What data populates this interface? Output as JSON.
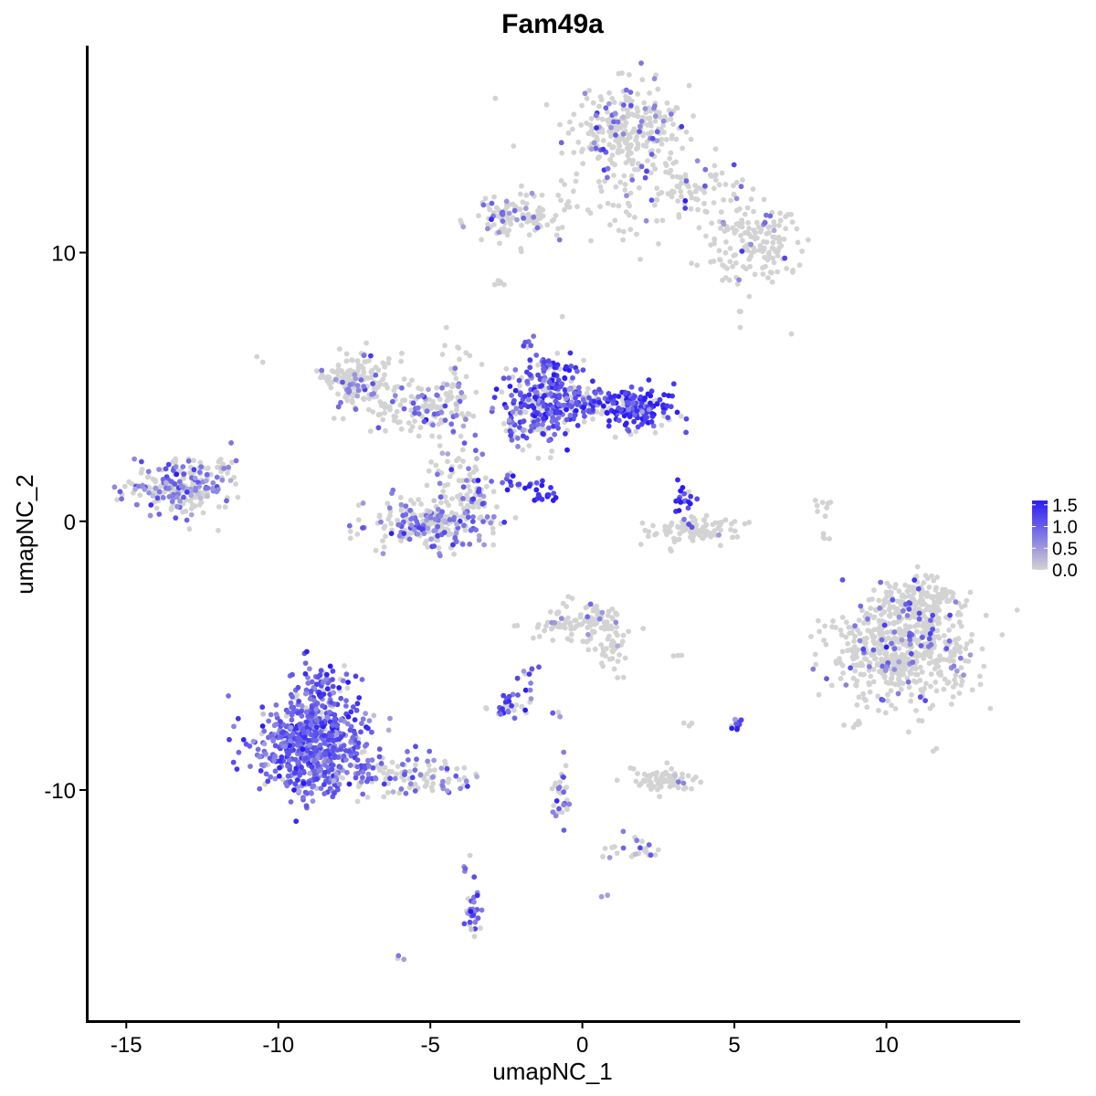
{
  "chart_data": {
    "type": "scatter",
    "title": "Fam49a",
    "xlabel": "umapNC_1",
    "ylabel": "umapNC_2",
    "xlim": [
      -16.3,
      14.4
    ],
    "ylim": [
      -18.6,
      17.7
    ],
    "x_ticks": [
      -15,
      -10,
      -5,
      0,
      5,
      10
    ],
    "x_tick_labels": [
      "-15",
      "-10",
      "-5",
      "0",
      "5",
      "10"
    ],
    "y_ticks": [
      -10,
      0,
      10
    ],
    "y_tick_labels": [
      "-10",
      "0",
      "10"
    ],
    "grid": false,
    "legend_position": "right",
    "color_scale": {
      "low": "#d3d3d3",
      "high": "#2a1bf5",
      "min": 0.0,
      "max": 1.6,
      "tick_values": [
        1.5,
        1.0,
        0.5,
        0.0
      ],
      "tick_labels": [
        "1.5",
        "1.0",
        "0.5",
        "0.0"
      ]
    },
    "clusters": [
      {
        "cx": 1.5,
        "cy": 14.5,
        "sx": 1.3,
        "sy": 1.1,
        "n": 300,
        "frac": 0.2,
        "level": 0.9
      },
      {
        "cx": 3.4,
        "cy": 12.4,
        "sx": 1.0,
        "sy": 0.6,
        "n": 70,
        "frac": 0.15,
        "level": 0.9
      },
      {
        "cx": 5.6,
        "cy": 10.3,
        "sx": 1.0,
        "sy": 1.0,
        "n": 170,
        "frac": 0.06,
        "level": 0.8
      },
      {
        "cx": 0.8,
        "cy": 11.5,
        "sx": 2.0,
        "sy": 0.8,
        "n": 50,
        "frac": 0.05,
        "level": 0.8
      },
      {
        "cx": -2.6,
        "cy": 11.3,
        "sx": 0.8,
        "sy": 0.6,
        "n": 80,
        "frac": 0.3,
        "level": 0.8
      },
      {
        "cx": -1.4,
        "cy": 11.1,
        "sx": 0.6,
        "sy": 0.25,
        "n": 25,
        "frac": 0.2,
        "level": 0.7
      },
      {
        "cx": -2.7,
        "cy": 8.8,
        "sx": 0.15,
        "sy": 0.15,
        "n": 6,
        "frac": 0.0,
        "level": 0.5
      },
      {
        "cx": 5.2,
        "cy": 7.8,
        "sx": 0.05,
        "sy": 0.05,
        "n": 2,
        "frac": 0.0,
        "level": 0.5
      },
      {
        "cx": 6.9,
        "cy": 7.0,
        "sx": 0.05,
        "sy": 0.05,
        "n": 1,
        "frac": 0.0,
        "level": 0.5
      },
      {
        "cx": -1.2,
        "cy": 4.8,
        "sx": 0.8,
        "sy": 1.1,
        "n": 260,
        "frac": 0.7,
        "level": 1.2
      },
      {
        "cx": 1.8,
        "cy": 4.2,
        "sx": 0.8,
        "sy": 0.5,
        "n": 160,
        "frac": 0.8,
        "level": 1.35
      },
      {
        "cx": 0.2,
        "cy": 4.4,
        "sx": 0.8,
        "sy": 0.4,
        "n": 80,
        "frac": 0.6,
        "level": 1.1
      },
      {
        "cx": -1.8,
        "cy": 3.6,
        "sx": 0.5,
        "sy": 0.4,
        "n": 50,
        "frac": 0.5,
        "level": 1.0
      },
      {
        "cx": -2.1,
        "cy": 1.4,
        "sx": 0.6,
        "sy": 0.3,
        "n": 20,
        "frac": 0.8,
        "level": 1.3
      },
      {
        "cx": -1.3,
        "cy": 0.9,
        "sx": 0.4,
        "sy": 0.2,
        "n": 12,
        "frac": 0.9,
        "level": 1.5
      },
      {
        "cx": -7.5,
        "cy": 5.3,
        "sx": 0.7,
        "sy": 0.7,
        "n": 160,
        "frac": 0.15,
        "level": 0.8
      },
      {
        "cx": -5.0,
        "cy": 4.2,
        "sx": 1.2,
        "sy": 0.6,
        "n": 130,
        "frac": 0.35,
        "level": 0.9
      },
      {
        "cx": -4.3,
        "cy": 5.6,
        "sx": 0.4,
        "sy": 1.2,
        "n": 30,
        "frac": 0.1,
        "level": 0.6
      },
      {
        "cx": -4.4,
        "cy": 2.2,
        "sx": 0.35,
        "sy": 0.9,
        "n": 30,
        "frac": 0.2,
        "level": 0.7
      },
      {
        "cx": -5.1,
        "cy": -0.1,
        "sx": 1.3,
        "sy": 0.55,
        "n": 230,
        "frac": 0.4,
        "level": 0.8
      },
      {
        "cx": -3.6,
        "cy": 1.0,
        "sx": 0.4,
        "sy": 0.8,
        "n": 70,
        "frac": 0.4,
        "level": 0.9
      },
      {
        "cx": -13.3,
        "cy": 1.3,
        "sx": 1.0,
        "sy": 0.6,
        "n": 220,
        "frac": 0.45,
        "level": 0.75
      },
      {
        "cx": -11.8,
        "cy": 1.9,
        "sx": 0.35,
        "sy": 0.5,
        "n": 25,
        "frac": 0.2,
        "level": 0.6
      },
      {
        "cx": 3.7,
        "cy": -0.3,
        "sx": 0.9,
        "sy": 0.3,
        "n": 100,
        "frac": 0.05,
        "level": 0.8
      },
      {
        "cx": 3.4,
        "cy": 0.8,
        "sx": 0.25,
        "sy": 0.4,
        "n": 20,
        "frac": 0.8,
        "level": 1.4
      },
      {
        "cx": 8.0,
        "cy": 0.3,
        "sx": 0.15,
        "sy": 0.5,
        "n": 12,
        "frac": 0.0,
        "level": 0.5
      },
      {
        "cx": 10.5,
        "cy": -4.8,
        "sx": 1.4,
        "sy": 1.3,
        "n": 600,
        "frac": 0.12,
        "level": 0.95
      },
      {
        "cx": 11.2,
        "cy": -3.0,
        "sx": 0.8,
        "sy": 0.6,
        "n": 120,
        "frac": 0.12,
        "level": 0.95
      },
      {
        "cx": 0.0,
        "cy": -3.8,
        "sx": 0.9,
        "sy": 0.5,
        "n": 110,
        "frac": 0.15,
        "level": 0.7
      },
      {
        "cx": 1.0,
        "cy": -4.7,
        "sx": 0.3,
        "sy": 0.5,
        "n": 30,
        "frac": 0.05,
        "level": 0.6
      },
      {
        "cx": -2.3,
        "cy": -6.9,
        "sx": 0.4,
        "sy": 0.3,
        "n": 30,
        "frac": 0.55,
        "level": 1.1
      },
      {
        "cx": -1.7,
        "cy": -5.9,
        "sx": 0.2,
        "sy": 0.5,
        "n": 10,
        "frac": 0.5,
        "level": 1.0
      },
      {
        "cx": 2.5,
        "cy": -9.6,
        "sx": 0.7,
        "sy": 0.3,
        "n": 70,
        "frac": 0.03,
        "level": 0.6
      },
      {
        "cx": 5.0,
        "cy": -7.5,
        "sx": 0.15,
        "sy": 0.2,
        "n": 12,
        "frac": 0.7,
        "level": 1.2
      },
      {
        "cx": 3.0,
        "cy": -5.0,
        "sx": 0.1,
        "sy": 0.1,
        "n": 3,
        "frac": 0.0,
        "level": 0.5
      },
      {
        "cx": 3.5,
        "cy": -7.6,
        "sx": 0.1,
        "sy": 0.1,
        "n": 3,
        "frac": 0.3,
        "level": 0.7
      },
      {
        "cx": -0.8,
        "cy": -7.2,
        "sx": 0.1,
        "sy": 0.1,
        "n": 3,
        "frac": 0.3,
        "level": 0.7
      },
      {
        "cx": -0.7,
        "cy": -10.4,
        "sx": 0.2,
        "sy": 0.9,
        "n": 30,
        "frac": 0.5,
        "level": 0.9
      },
      {
        "cx": 1.7,
        "cy": -12.2,
        "sx": 0.7,
        "sy": 0.3,
        "n": 25,
        "frac": 0.3,
        "level": 0.8
      },
      {
        "cx": -8.8,
        "cy": -8.4,
        "sx": 1.1,
        "sy": 1.1,
        "n": 650,
        "frac": 0.9,
        "level": 1.0
      },
      {
        "cx": -8.6,
        "cy": -6.2,
        "sx": 0.6,
        "sy": 0.6,
        "n": 80,
        "frac": 0.8,
        "level": 1.1
      },
      {
        "cx": -5.5,
        "cy": -9.5,
        "sx": 1.3,
        "sy": 0.5,
        "n": 110,
        "frac": 0.4,
        "level": 0.8
      },
      {
        "cx": -3.6,
        "cy": -14.7,
        "sx": 0.2,
        "sy": 0.6,
        "n": 30,
        "frac": 0.7,
        "level": 0.9
      },
      {
        "cx": -3.9,
        "cy": -12.4,
        "sx": 0.1,
        "sy": 0.4,
        "n": 4,
        "frac": 0.5,
        "level": 1.0
      },
      {
        "cx": -6.0,
        "cy": -16.3,
        "sx": 0.1,
        "sy": 0.1,
        "n": 3,
        "frac": 0.5,
        "level": 0.7
      },
      {
        "cx": 0.7,
        "cy": -14.0,
        "sx": 0.1,
        "sy": 0.1,
        "n": 2,
        "frac": 0.5,
        "level": 0.7
      },
      {
        "cx": -10.5,
        "cy": 6.1,
        "sx": 0.1,
        "sy": 0.1,
        "n": 2,
        "frac": 0.0,
        "level": 0.5
      }
    ]
  }
}
